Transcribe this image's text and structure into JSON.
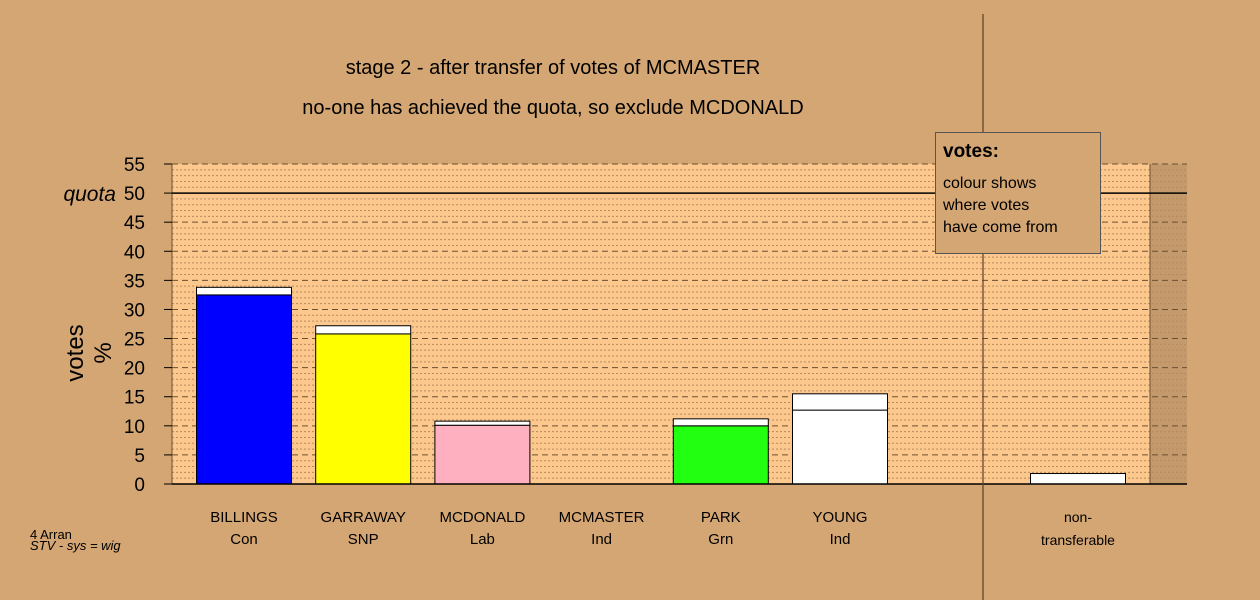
{
  "chart_data": {
    "type": "bar",
    "title": "stage 2 - after transfer of votes of MCMASTER",
    "subtitle": "no-one has achieved the quota, so exclude MCDONALD",
    "ylabel": "votes %",
    "ylim": [
      0,
      55
    ],
    "yticks": [
      "0",
      "5",
      "10",
      "15",
      "20",
      "25",
      "30",
      "35",
      "40",
      "45",
      "50",
      "55"
    ],
    "quota": {
      "label": "quota",
      "value": 50
    },
    "categories": [
      {
        "name": "BILLINGS",
        "party": "Con",
        "base": 32.5,
        "transferred": 1.3,
        "color": "#0000ff"
      },
      {
        "name": "GARRAWAY",
        "party": "SNP",
        "base": 25.8,
        "transferred": 1.4,
        "color": "#ffff00"
      },
      {
        "name": "MCDONALD",
        "party": "Lab",
        "base": 10.1,
        "transferred": 0.7,
        "color": "#ffb0c0"
      },
      {
        "name": "MCMASTER",
        "party": "Ind",
        "base": 0,
        "transferred": 0,
        "color": "#ffffff"
      },
      {
        "name": "PARK",
        "party": "Grn",
        "base": 10.0,
        "transferred": 1.2,
        "color": "#22ff11"
      },
      {
        "name": "YOUNG",
        "party": "Ind",
        "base": 12.7,
        "transferred": 2.8,
        "color": "#ffffff"
      }
    ],
    "nontransferable": {
      "name": "non-",
      "party": "transferable",
      "value": 1.8,
      "color": "#ffffff"
    },
    "grid": true
  },
  "legend": {
    "title": "votes:",
    "body": "colour shows\nwhere votes\nhave come from"
  },
  "footer": {
    "line1": "4 Arran",
    "line2": "STV - sys = wig"
  },
  "colors": {
    "background": "#d4a673",
    "plot_area": "#fcc88e",
    "nontransferable_area": "#c49a6c"
  }
}
